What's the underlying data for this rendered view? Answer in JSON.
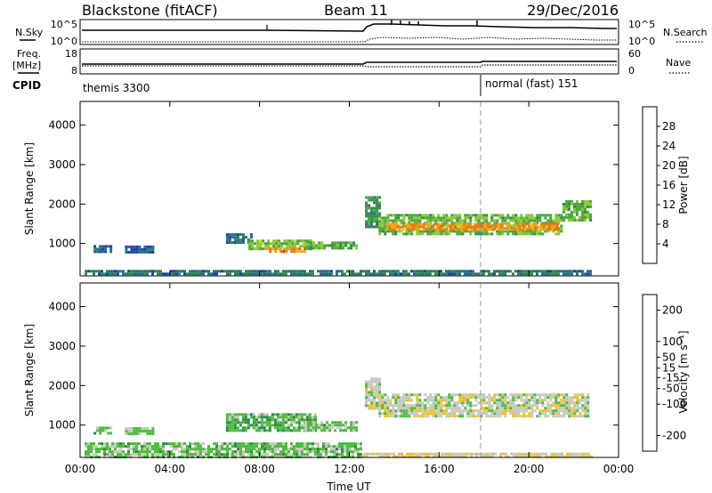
{
  "header": {
    "radar": "Blackstone (fitACF)",
    "beam": "Beam 11",
    "date": "29/Dec/2016"
  },
  "chart_data": [
    {
      "type": "line",
      "name": "noise-panel",
      "left_label": "N.Sky",
      "right_label": "N.Search",
      "left_ticks": [
        "10^5",
        "10^0"
      ],
      "right_ticks": [
        "10^5",
        "10^0"
      ],
      "series": [
        {
          "name": "N.Sky",
          "style": "solid"
        },
        {
          "name": "N.Search",
          "style": "dotted"
        }
      ]
    },
    {
      "type": "line",
      "name": "freq-panel",
      "left_label_lines": [
        "Freq.",
        "[MHz]"
      ],
      "right_label": "Nave",
      "left_ticks": [
        18,
        8
      ],
      "right_ticks": [
        60,
        0
      ],
      "series": [
        {
          "name": "Freq",
          "style": "solid"
        },
        {
          "name": "Nave",
          "style": "dotted"
        }
      ]
    },
    {
      "type": "table",
      "name": "cpid-panel",
      "label": "CPID",
      "segments": [
        {
          "label": "themis 3300",
          "start_hour": 0
        },
        {
          "label": "normal (fast) 151",
          "start_hour": 18
        }
      ]
    },
    {
      "type": "heatmap",
      "name": "power-panel",
      "ylabel": "Slant Range [km]",
      "ylim": [
        180,
        4600
      ],
      "yticks": [
        1000,
        2000,
        3000,
        4000
      ],
      "xlim": [
        0,
        24
      ],
      "colorbar": {
        "label": "Power [dB]",
        "range": [
          0,
          32
        ],
        "ticks": [
          4,
          8,
          12,
          16,
          20,
          24,
          28
        ],
        "colors": [
          "#1515ee",
          "#1f3fb4",
          "#2a6e7c",
          "#2f8a4a",
          "#4aa640",
          "#8ac832",
          "#d8da28",
          "#f0a81c",
          "#f07818",
          "#e83c10",
          "#d80c0c"
        ]
      },
      "bands": [
        {
          "x": [
            0.6,
            1.4
          ],
          "y": [
            760,
            960
          ],
          "value": 6
        },
        {
          "x": [
            2.0,
            3.3
          ],
          "y": [
            780,
            950
          ],
          "value": 6
        },
        {
          "x": [
            6.5,
            7.6
          ],
          "y": [
            1050,
            1260
          ],
          "value": 7
        },
        {
          "x": [
            7.5,
            10.3
          ],
          "y": [
            880,
            1100
          ],
          "value": 15
        },
        {
          "x": [
            8.3,
            10.0
          ],
          "y": [
            780,
            900
          ],
          "value": 24
        },
        {
          "x": [
            10.0,
            12.3
          ],
          "y": [
            850,
            1050
          ],
          "value": 13
        },
        {
          "x": [
            12.7,
            13.3
          ],
          "y": [
            1400,
            2200
          ],
          "value": 10
        },
        {
          "x": [
            13.3,
            21.5
          ],
          "y": [
            1250,
            1750
          ],
          "value": 14
        },
        {
          "x": [
            13.6,
            21.3
          ],
          "y": [
            1330,
            1520
          ],
          "value": 23
        },
        {
          "x": [
            21.5,
            22.7
          ],
          "y": [
            1600,
            2100
          ],
          "value": 14
        },
        {
          "x": [
            0.2,
            22.8
          ],
          "y": [
            200,
            330
          ],
          "value": 8
        }
      ]
    },
    {
      "type": "heatmap",
      "name": "velocity-panel",
      "ylabel": "Slant Range [km]",
      "ylim": [
        180,
        4600
      ],
      "yticks": [
        1000,
        2000,
        3000,
        4000
      ],
      "xlim": [
        0,
        24
      ],
      "xticks": [
        "00:00",
        "04:00",
        "08:00",
        "12:00",
        "16:00",
        "20:00",
        "00:00"
      ],
      "xlabel": "Time UT",
      "colorbar": {
        "label": "Velocity [m s⁻¹]",
        "range": [
          -250,
          250
        ],
        "ticks": [
          200,
          100,
          50,
          15,
          -15,
          -50,
          -100,
          -200
        ],
        "colors": [
          "#1a2ab4",
          "#1d5a82",
          "#2d8a4a",
          "#4cbc3c",
          "#c8c8c0",
          "#f0c018",
          "#f08c10",
          "#f05010",
          "#e01010"
        ]
      },
      "bands": [
        {
          "x": [
            0.6,
            1.4
          ],
          "y": [
            760,
            960
          ],
          "value": -40
        },
        {
          "x": [
            2.0,
            3.3
          ],
          "y": [
            780,
            950
          ],
          "value": -40
        },
        {
          "x": [
            6.5,
            10.5
          ],
          "y": [
            850,
            1300
          ],
          "value": -60
        },
        {
          "x": [
            10.0,
            12.3
          ],
          "y": [
            850,
            1100
          ],
          "value": -40
        },
        {
          "x": [
            12.7,
            13.3
          ],
          "y": [
            1400,
            2200
          ],
          "value": 0
        },
        {
          "x": [
            13.3,
            22.7
          ],
          "y": [
            1250,
            1800
          ],
          "value": 0
        },
        {
          "x": [
            0.2,
            12.5
          ],
          "y": [
            200,
            560
          ],
          "value": -45
        },
        {
          "x": [
            12.5,
            22.8
          ],
          "y": [
            200,
            300
          ],
          "value": 20
        }
      ]
    }
  ]
}
